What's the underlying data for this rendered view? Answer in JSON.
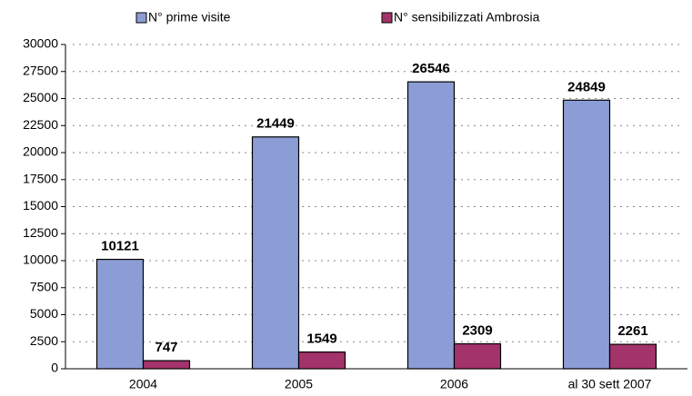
{
  "chart_data": {
    "type": "bar",
    "categories": [
      "2004",
      "2005",
      "2006",
      "al 30 sett 2007"
    ],
    "series": [
      {
        "name": "N° prime visite",
        "color": "#8c9dd6",
        "values": [
          10121,
          21449,
          26546,
          24849
        ]
      },
      {
        "name": "N° sensibilizzati Ambrosia",
        "color": "#a3336b",
        "values": [
          747,
          1549,
          2309,
          2261
        ]
      }
    ],
    "ylim": [
      0,
      30000
    ],
    "yticks": [
      0,
      2500,
      5000,
      7500,
      10000,
      12500,
      15000,
      17500,
      20000,
      22500,
      25000,
      27500,
      30000
    ],
    "grid": true,
    "legend": "top"
  }
}
